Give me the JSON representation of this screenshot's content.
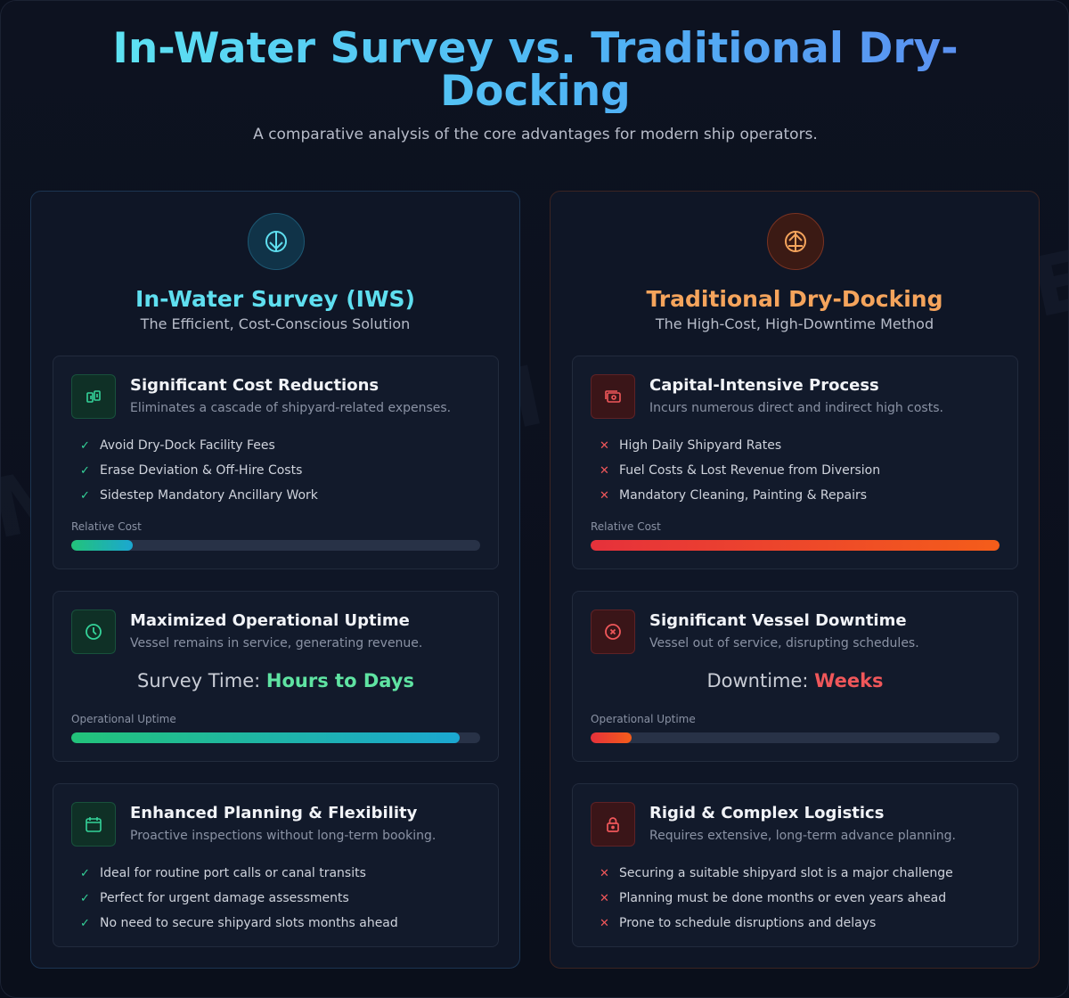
{
  "header": {
    "title": "In-Water Survey vs. Traditional Dry-Docking",
    "subtitle": "A comparative analysis of the core advantages for modern ship operators."
  },
  "watermark": "MARINASHIPSERVICE.COM",
  "colors": {
    "iws_accent": "#5fdff0",
    "dry_accent": "#f5a45c",
    "positive": "#34d399",
    "negative": "#f0575a"
  },
  "iws": {
    "icon": "compass-icon",
    "title": "In-Water Survey (IWS)",
    "subtitle": "The Efficient, Cost-Conscious Solution",
    "cost": {
      "icon": "money-transfer-icon",
      "title": "Significant Cost Reductions",
      "desc": "Eliminates a cascade of shipyard-related expenses.",
      "items": [
        "Avoid Dry-Dock Facility Fees",
        "Erase Deviation & Off-Hire Costs",
        "Sidestep Mandatory Ancillary Work"
      ],
      "bar_label": "Relative Cost",
      "bar_value": 0.15
    },
    "uptime": {
      "icon": "clock-icon",
      "title": "Maximized Operational Uptime",
      "desc": "Vessel remains in service, generating revenue.",
      "metric_label": "Survey Time:",
      "metric_value": "Hours to Days",
      "bar_label": "Operational Uptime",
      "bar_value": 0.95
    },
    "planning": {
      "icon": "calendar-icon",
      "title": "Enhanced Planning & Flexibility",
      "desc": "Proactive inspections without long-term booking.",
      "items": [
        "Ideal for routine port calls or canal transits",
        "Perfect for urgent damage assessments",
        "No need to secure shipyard slots months ahead"
      ]
    }
  },
  "dry": {
    "icon": "anchor-dock-icon",
    "title": "Traditional Dry-Docking",
    "subtitle": "The High-Cost, High-Downtime Method",
    "cost": {
      "icon": "cash-icon",
      "title": "Capital-Intensive Process",
      "desc": "Incurs numerous direct and indirect high costs.",
      "items": [
        "High Daily Shipyard Rates",
        "Fuel Costs & Lost Revenue from Diversion",
        "Mandatory Cleaning, Painting & Repairs"
      ],
      "bar_label": "Relative Cost",
      "bar_value": 1.0
    },
    "uptime": {
      "icon": "stop-circle-icon",
      "title": "Significant Vessel Downtime",
      "desc": "Vessel out of service, disrupting schedules.",
      "metric_label": "Downtime:",
      "metric_value": "Weeks",
      "bar_label": "Operational Uptime",
      "bar_value": 0.1
    },
    "planning": {
      "icon": "lock-icon",
      "title": "Rigid & Complex Logistics",
      "desc": "Requires extensive, long-term advance planning.",
      "items": [
        "Securing a suitable shipyard slot is a major challenge",
        "Planning must be done months or even years ahead",
        "Prone to schedule disruptions and delays"
      ]
    }
  }
}
